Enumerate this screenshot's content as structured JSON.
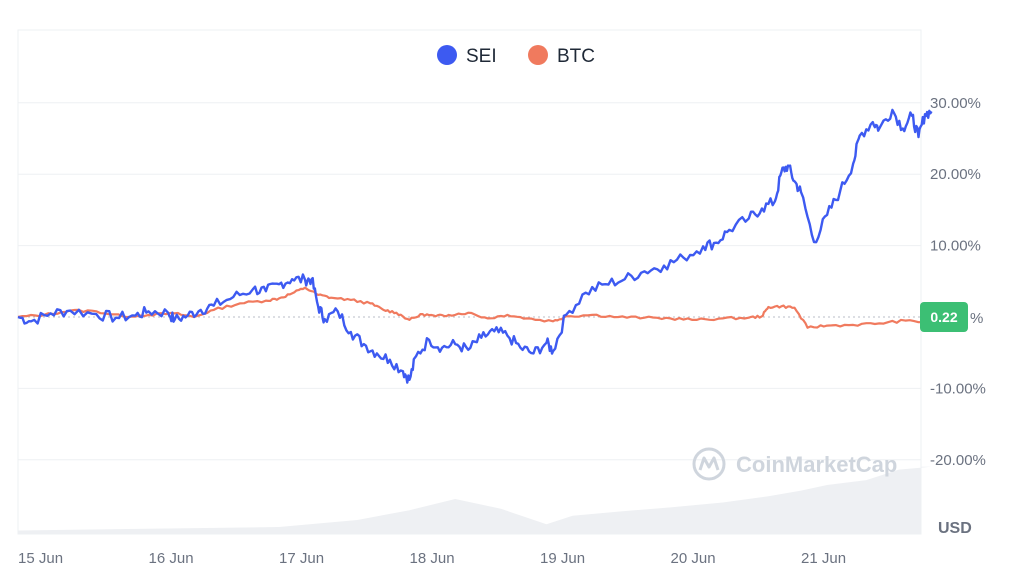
{
  "chart_data": {
    "type": "line",
    "x": [
      "15 Jun",
      "16 Jun",
      "17 Jun",
      "18 Jun",
      "19 Jun",
      "20 Jun",
      "21 Jun"
    ],
    "ylim": [
      -30,
      35
    ],
    "yticks": [
      30,
      20,
      10,
      -10,
      -20
    ],
    "ytick_labels": [
      "30.00%",
      "20.00%",
      "10.00%",
      "-10.00%",
      "-20.00%"
    ],
    "unit_label": "USD",
    "zero_badge": "0.22",
    "zero_badge_suffix": "%",
    "grid": true,
    "legend_position": "top-center",
    "series": [
      {
        "name": "SEI",
        "color": "#3d5af1",
        "points": [
          [
            0,
            0
          ],
          [
            0.1,
            -0.6
          ],
          [
            0.25,
            0.5
          ],
          [
            0.4,
            0.9
          ],
          [
            0.6,
            0.4
          ],
          [
            0.75,
            -0.1
          ],
          [
            0.9,
            0.2
          ],
          [
            1.0,
            0.8
          ],
          [
            1.15,
            0.6
          ],
          [
            1.2,
            -0.4
          ],
          [
            1.3,
            0.2
          ],
          [
            1.4,
            1.0
          ],
          [
            1.5,
            1.6
          ],
          [
            1.65,
            2.8
          ],
          [
            1.8,
            3.9
          ],
          [
            1.9,
            3.6
          ],
          [
            2.0,
            4.6
          ],
          [
            2.1,
            5.3
          ],
          [
            2.2,
            5.2
          ],
          [
            2.25,
            5.3
          ],
          [
            2.3,
            1.5
          ],
          [
            2.35,
            -0.3
          ],
          [
            2.45,
            0.8
          ],
          [
            2.55,
            -2.1
          ],
          [
            2.65,
            -3.8
          ],
          [
            2.75,
            -5.1
          ],
          [
            2.85,
            -6.0
          ],
          [
            2.95,
            -7.6
          ],
          [
            3.0,
            -8.8
          ],
          [
            3.05,
            -5.5
          ],
          [
            3.15,
            -3.2
          ],
          [
            3.25,
            -4.3
          ],
          [
            3.35,
            -3.8
          ],
          [
            3.45,
            -4.6
          ],
          [
            3.55,
            -2.9
          ],
          [
            3.65,
            -2.0
          ],
          [
            3.75,
            -2.6
          ],
          [
            3.85,
            -4.3
          ],
          [
            3.95,
            -5.1
          ],
          [
            4.05,
            -3.6
          ],
          [
            4.1,
            -4.8
          ],
          [
            4.2,
            0.3
          ],
          [
            4.35,
            3.4
          ],
          [
            4.5,
            4.6
          ],
          [
            4.65,
            5.3
          ],
          [
            4.8,
            6.4
          ],
          [
            4.95,
            7.2
          ],
          [
            5.1,
            8.3
          ],
          [
            5.25,
            9.9
          ],
          [
            5.35,
            10.4
          ],
          [
            5.45,
            12.2
          ],
          [
            5.6,
            13.8
          ],
          [
            5.7,
            15.2
          ],
          [
            5.8,
            16.2
          ],
          [
            5.85,
            20.3
          ],
          [
            5.9,
            21.2
          ],
          [
            5.95,
            19.0
          ],
          [
            6.0,
            17.5
          ],
          [
            6.1,
            10.5
          ],
          [
            6.2,
            14.3
          ],
          [
            6.3,
            17.6
          ],
          [
            6.4,
            21.5
          ],
          [
            6.45,
            25.4
          ],
          [
            6.55,
            27.3
          ],
          [
            6.6,
            26.4
          ],
          [
            6.7,
            29.0
          ],
          [
            6.78,
            26.4
          ],
          [
            6.85,
            28.2
          ],
          [
            6.9,
            25.2
          ],
          [
            6.95,
            28.4
          ],
          [
            7.0,
            28.8
          ]
        ]
      },
      {
        "name": "BTC",
        "color": "#f07a5e",
        "points": [
          [
            0,
            0
          ],
          [
            0.2,
            0.3
          ],
          [
            0.4,
            0.9
          ],
          [
            0.6,
            0.8
          ],
          [
            0.8,
            0.1
          ],
          [
            1.0,
            0.3
          ],
          [
            1.2,
            0.5
          ],
          [
            1.35,
            0.0
          ],
          [
            1.5,
            1.0
          ],
          [
            1.7,
            1.9
          ],
          [
            1.9,
            2.3
          ],
          [
            2.0,
            2.6
          ],
          [
            2.1,
            3.3
          ],
          [
            2.2,
            4.1
          ],
          [
            2.3,
            3.1
          ],
          [
            2.4,
            2.7
          ],
          [
            2.55,
            2.4
          ],
          [
            2.7,
            1.9
          ],
          [
            2.8,
            1.0
          ],
          [
            2.9,
            0.6
          ],
          [
            3.0,
            -0.4
          ],
          [
            3.1,
            0.4
          ],
          [
            3.2,
            0.1
          ],
          [
            3.3,
            0.3
          ],
          [
            3.45,
            0.6
          ],
          [
            3.6,
            -0.2
          ],
          [
            3.75,
            0.3
          ],
          [
            3.9,
            -0.2
          ],
          [
            4.1,
            -0.6
          ],
          [
            4.2,
            0.1
          ],
          [
            4.4,
            0.3
          ],
          [
            4.6,
            0.0
          ],
          [
            4.8,
            -0.1
          ],
          [
            5.0,
            -0.2
          ],
          [
            5.2,
            -0.4
          ],
          [
            5.4,
            -0.2
          ],
          [
            5.6,
            -0.1
          ],
          [
            5.7,
            0.1
          ],
          [
            5.75,
            1.4
          ],
          [
            5.85,
            1.5
          ],
          [
            5.95,
            1.3
          ],
          [
            6.05,
            -1.5
          ],
          [
            6.2,
            -1.2
          ],
          [
            6.4,
            -1.1
          ],
          [
            6.6,
            -0.9
          ],
          [
            6.8,
            -0.5
          ],
          [
            7.0,
            -0.8
          ]
        ]
      }
    ],
    "volume_steps": [
      [
        0,
        0.5
      ],
      [
        2.0,
        1.0
      ],
      [
        2.6,
        2.0
      ],
      [
        3.0,
        3.4
      ],
      [
        3.35,
        5.0
      ],
      [
        3.7,
        3.6
      ],
      [
        4.05,
        1.4
      ],
      [
        4.25,
        2.6
      ],
      [
        4.6,
        3.2
      ],
      [
        5.0,
        3.8
      ],
      [
        5.4,
        4.5
      ],
      [
        5.75,
        5.4
      ],
      [
        6.0,
        6.2
      ],
      [
        6.2,
        7.0
      ],
      [
        6.5,
        7.7
      ],
      [
        6.75,
        9.2
      ],
      [
        7.0,
        9.6
      ]
    ],
    "volume_max": 10
  },
  "watermark": "CoinMarketCap"
}
